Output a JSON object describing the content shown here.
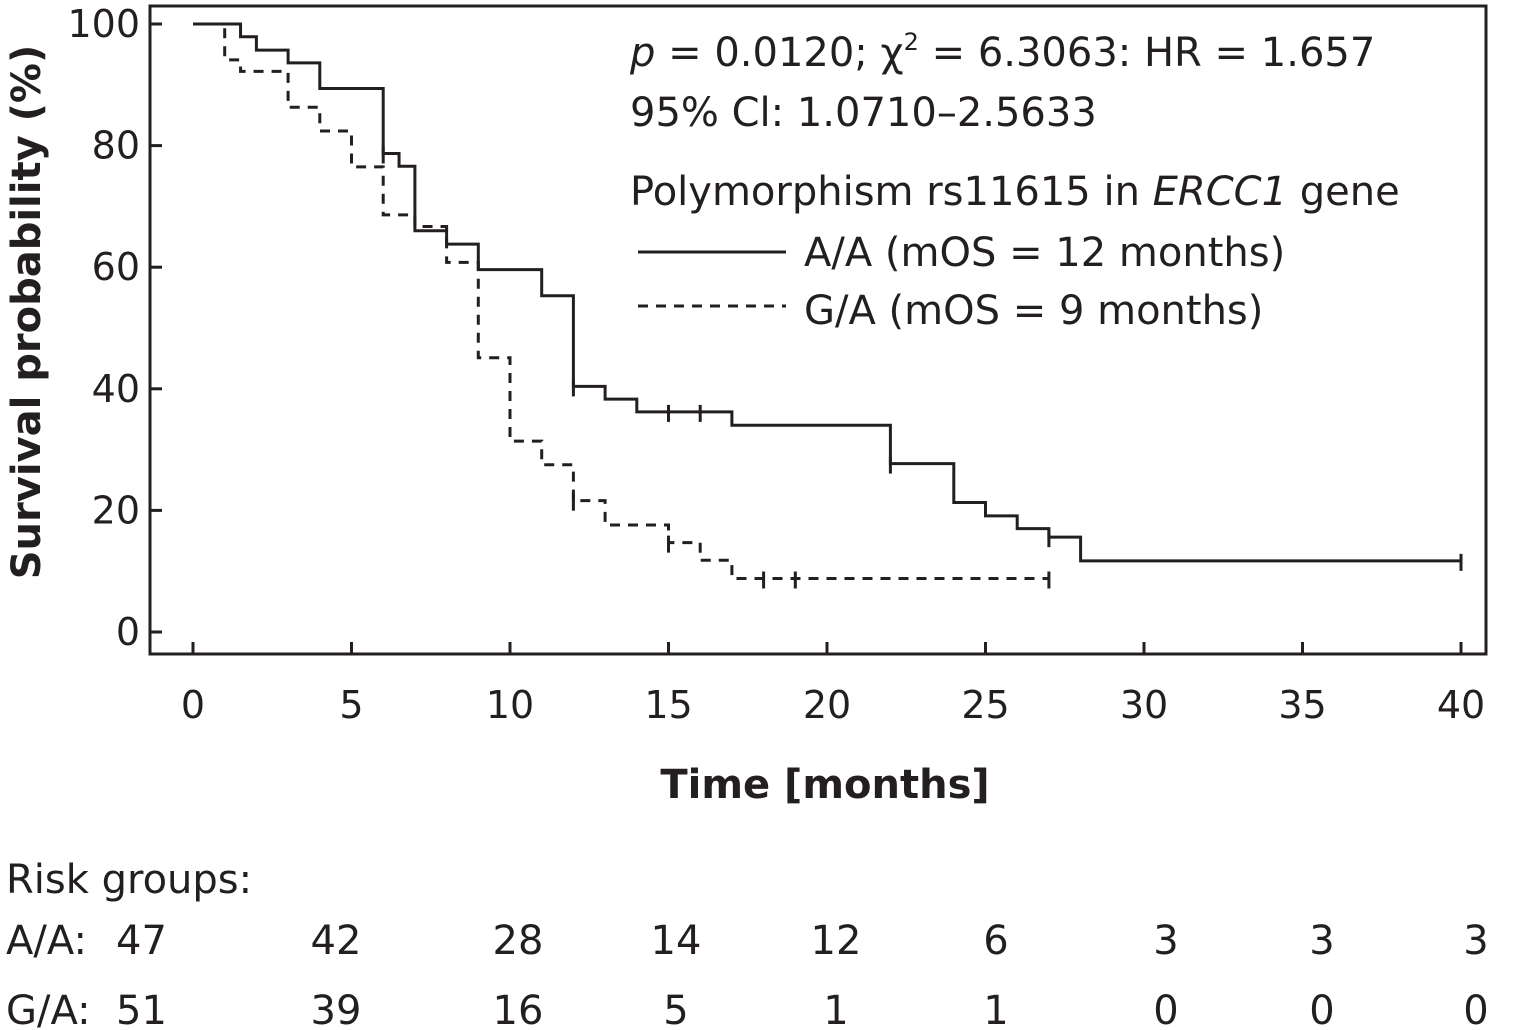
{
  "chart_data": {
    "type": "line",
    "subtype": "kaplan-meier step",
    "xlabel": "Time [months]",
    "ylabel": "Survival probability (%)",
    "xlim": [
      0,
      40
    ],
    "ylim": [
      0,
      100
    ],
    "xticks": [
      0,
      5,
      10,
      15,
      20,
      25,
      30,
      35,
      40
    ],
    "yticks": [
      0,
      20,
      40,
      60,
      80,
      100
    ],
    "grid": false,
    "annotations": {
      "stats_p": "p",
      "stats_rest": " = 0.0120; χ",
      "stats_sup": "2",
      "stats_tail": " = 6.3063: HR = 1.657",
      "ci": "95% Cl: 1.0710–2.5633",
      "legend_title_pre": "Polymorphism rs11615 in ",
      "legend_title_gene": "ERCC1",
      "legend_title_post": " gene"
    },
    "legend_position": "top-right",
    "series": [
      {
        "name": "A/A (mOS = 12 months)",
        "style": "solid",
        "steps": [
          [
            0,
            100
          ],
          [
            1.5,
            97.9
          ],
          [
            2,
            95.7
          ],
          [
            3,
            93.6
          ],
          [
            4,
            89.4
          ],
          [
            6,
            78.7
          ],
          [
            6.5,
            76.6
          ],
          [
            7,
            66
          ],
          [
            8,
            63.8
          ],
          [
            9,
            59.6
          ],
          [
            11,
            55.3
          ],
          [
            12,
            40.4
          ],
          [
            13,
            38.3
          ],
          [
            14,
            36.2
          ],
          [
            17,
            34
          ],
          [
            22,
            27.7
          ],
          [
            24,
            21.3
          ],
          [
            25,
            19.1
          ],
          [
            26,
            17
          ],
          [
            27,
            15.6
          ],
          [
            28,
            11.7
          ],
          [
            40,
            11.7
          ]
        ],
        "censor_times": [
          6,
          12,
          15,
          16,
          22,
          27,
          40
        ]
      },
      {
        "name": "G/A (mOS = 9 months)",
        "style": "dashed",
        "steps": [
          [
            0,
            100
          ],
          [
            1,
            94.1
          ],
          [
            1.5,
            92.2
          ],
          [
            3,
            86.3
          ],
          [
            4,
            82.4
          ],
          [
            5,
            76.5
          ],
          [
            6,
            68.6
          ],
          [
            7,
            66.7
          ],
          [
            8,
            60.8
          ],
          [
            9,
            45.1
          ],
          [
            10,
            31.4
          ],
          [
            11,
            27.5
          ],
          [
            12,
            21.6
          ],
          [
            13,
            17.6
          ],
          [
            15,
            14.7
          ],
          [
            16,
            11.8
          ],
          [
            17,
            8.8
          ],
          [
            27,
            8.8
          ]
        ],
        "censor_times": [
          12,
          15,
          18,
          19,
          27
        ]
      }
    ]
  },
  "risk_table": {
    "title": "Risk groups:",
    "rows": [
      {
        "label": "A/A:",
        "values": [
          "47",
          "42",
          "28",
          "14",
          "12",
          "6",
          "3",
          "3",
          "3"
        ]
      },
      {
        "label": "G/A:",
        "values": [
          "51",
          "39",
          "16",
          "5",
          "1",
          "1",
          "0",
          "0",
          "0"
        ]
      }
    ]
  },
  "colors": {
    "ink": "#231f20",
    "background": "#ffffff"
  }
}
